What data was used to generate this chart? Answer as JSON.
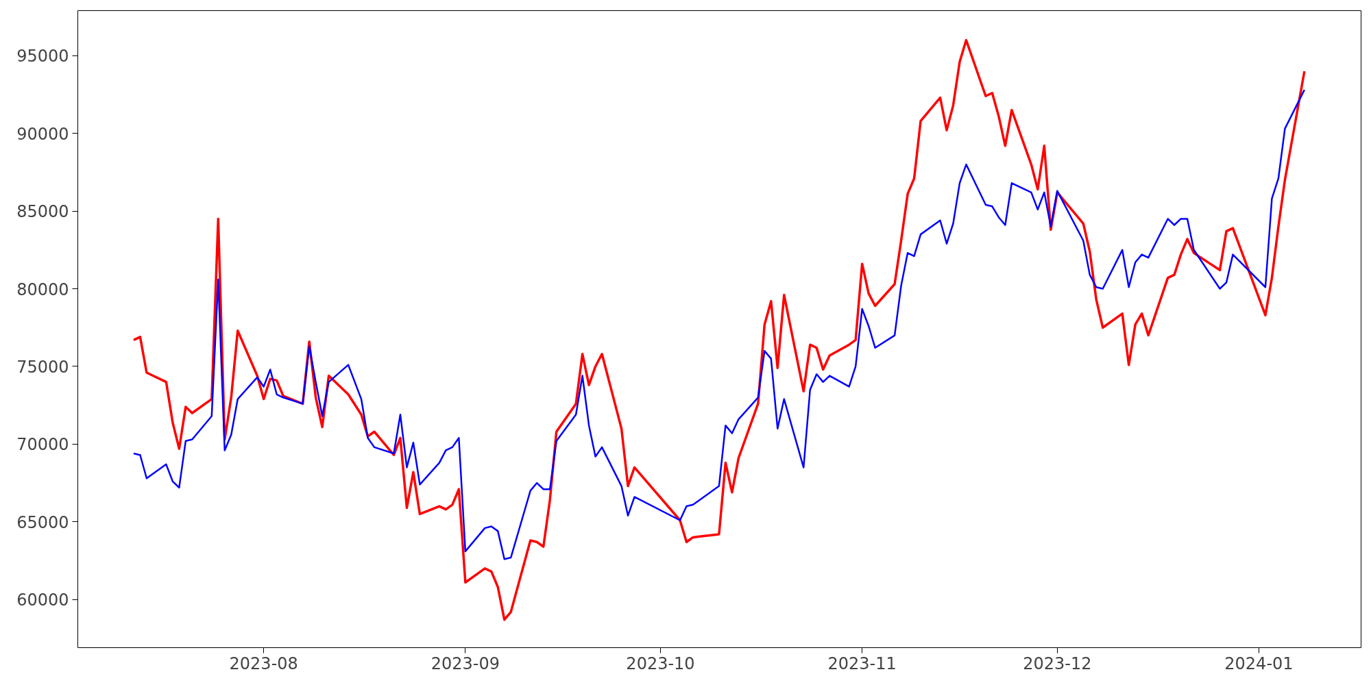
{
  "chart_data": {
    "type": "line",
    "x": [
      "2023-07-12",
      "2023-07-13",
      "2023-07-14",
      "2023-07-17",
      "2023-07-18",
      "2023-07-19",
      "2023-07-20",
      "2023-07-21",
      "2023-07-24",
      "2023-07-25",
      "2023-07-26",
      "2023-07-27",
      "2023-07-28",
      "2023-07-31",
      "2023-08-01",
      "2023-08-02",
      "2023-08-03",
      "2023-08-04",
      "2023-08-07",
      "2023-08-08",
      "2023-08-09",
      "2023-08-10",
      "2023-08-11",
      "2023-08-14",
      "2023-08-16",
      "2023-08-17",
      "2023-08-18",
      "2023-08-21",
      "2023-08-22",
      "2023-08-23",
      "2023-08-24",
      "2023-08-25",
      "2023-08-28",
      "2023-08-29",
      "2023-08-30",
      "2023-08-31",
      "2023-09-01",
      "2023-09-04",
      "2023-09-05",
      "2023-09-06",
      "2023-09-07",
      "2023-09-08",
      "2023-09-11",
      "2023-09-12",
      "2023-09-13",
      "2023-09-14",
      "2023-09-15",
      "2023-09-18",
      "2023-09-19",
      "2023-09-20",
      "2023-09-21",
      "2023-09-22",
      "2023-09-25",
      "2023-09-26",
      "2023-09-27",
      "2023-10-04",
      "2023-10-05",
      "2023-10-06",
      "2023-10-10",
      "2023-10-11",
      "2023-10-12",
      "2023-10-13",
      "2023-10-16",
      "2023-10-17",
      "2023-10-18",
      "2023-10-19",
      "2023-10-20",
      "2023-10-23",
      "2023-10-24",
      "2023-10-25",
      "2023-10-26",
      "2023-10-27",
      "2023-10-30",
      "2023-10-31",
      "2023-11-01",
      "2023-11-02",
      "2023-11-03",
      "2023-11-06",
      "2023-11-07",
      "2023-11-08",
      "2023-11-09",
      "2023-11-10",
      "2023-11-13",
      "2023-11-14",
      "2023-11-15",
      "2023-11-16",
      "2023-11-17",
      "2023-11-20",
      "2023-11-21",
      "2023-11-22",
      "2023-11-23",
      "2023-11-24",
      "2023-11-27",
      "2023-11-28",
      "2023-11-29",
      "2023-11-30",
      "2023-12-01",
      "2023-12-05",
      "2023-12-06",
      "2023-12-07",
      "2023-12-08",
      "2023-12-11",
      "2023-12-12",
      "2023-12-13",
      "2023-12-14",
      "2023-12-15",
      "2023-12-18",
      "2023-12-19",
      "2023-12-20",
      "2023-12-21",
      "2023-12-22",
      "2023-12-26",
      "2023-12-27",
      "2023-12-28",
      "2024-01-02",
      "2024-01-03",
      "2024-01-04",
      "2024-01-05",
      "2024-01-08"
    ],
    "series": [
      {
        "color": "#ff0000",
        "values": [
          76700,
          76900,
          74600,
          74000,
          71400,
          69700,
          72400,
          72000,
          72900,
          84500,
          70300,
          73000,
          77300,
          74400,
          72900,
          74200,
          74100,
          73100,
          72600,
          76600,
          73000,
          71100,
          74400,
          73200,
          71900,
          70500,
          70800,
          69300,
          70400,
          65900,
          68200,
          65500,
          66000,
          65800,
          66100,
          67100,
          61100,
          62000,
          61800,
          60800,
          58700,
          59200,
          63800,
          63700,
          63400,
          66400,
          70800,
          72600,
          75800,
          73800,
          75000,
          75800,
          71000,
          67300,
          68500,
          65100,
          63700,
          64000,
          64200,
          68800,
          66900,
          69100,
          72600,
          77700,
          79200,
          74900,
          79600,
          73400,
          76400,
          76200,
          74800,
          75700,
          76400,
          76700,
          81600,
          79700,
          78900,
          80300,
          83100,
          86100,
          87100,
          90800,
          92300,
          90200,
          91800,
          94600,
          96000,
          92400,
          92600,
          91100,
          89200,
          91500,
          88000,
          86400,
          89200,
          83800,
          86200,
          84200,
          82400,
          79300,
          77500,
          78400,
          75100,
          77700,
          78400,
          77000,
          80700,
          80900,
          82200,
          83200,
          82300,
          81200,
          83700,
          83900,
          78300,
          80700,
          84000,
          87000,
          94000
        ]
      },
      {
        "color": "#0000ff",
        "values": [
          69400,
          69300,
          67800,
          68700,
          67600,
          67200,
          70200,
          70300,
          71800,
          80600,
          69600,
          70600,
          72900,
          74300,
          73700,
          74800,
          73200,
          73000,
          72600,
          76300,
          74000,
          71800,
          74000,
          75100,
          72900,
          70400,
          69800,
          69400,
          71900,
          68500,
          70100,
          67400,
          68800,
          69600,
          69800,
          70400,
          63100,
          64600,
          64700,
          64400,
          62600,
          62700,
          67000,
          67500,
          67100,
          67100,
          70200,
          71900,
          74400,
          71200,
          69200,
          69800,
          67300,
          65400,
          66600,
          65100,
          66000,
          66100,
          67300,
          71200,
          70700,
          71600,
          73000,
          76000,
          75500,
          71000,
          72900,
          68500,
          73500,
          74500,
          74000,
          74400,
          73700,
          75000,
          78700,
          77600,
          76200,
          77000,
          80200,
          82300,
          82100,
          83500,
          84400,
          82900,
          84200,
          86800,
          88000,
          85400,
          85300,
          84600,
          84100,
          86800,
          86200,
          85100,
          86200,
          84000,
          86300,
          83100,
          80900,
          80100,
          80000,
          82500,
          80100,
          81700,
          82200,
          82000,
          84500,
          84100,
          84500,
          84500,
          82500,
          80000,
          80400,
          82200,
          80100,
          85800,
          87100,
          90300,
          92800
        ]
      }
    ],
    "xlim": [
      "2023-07-03T10:00",
      "2024-01-16T17:00"
    ],
    "xticks": [
      {
        "value": "2023-08-01",
        "label": "2023-08"
      },
      {
        "value": "2023-09-01",
        "label": "2023-09"
      },
      {
        "value": "2023-10-01",
        "label": "2023-10"
      },
      {
        "value": "2023-11-01",
        "label": "2023-11"
      },
      {
        "value": "2023-12-01",
        "label": "2023-12"
      },
      {
        "value": "2024-01-01",
        "label": "2024-01"
      }
    ],
    "ylim": [
      56900,
      97900
    ],
    "yticks": [
      60000,
      65000,
      70000,
      75000,
      80000,
      85000,
      90000,
      95000
    ],
    "line_style": "solid"
  }
}
